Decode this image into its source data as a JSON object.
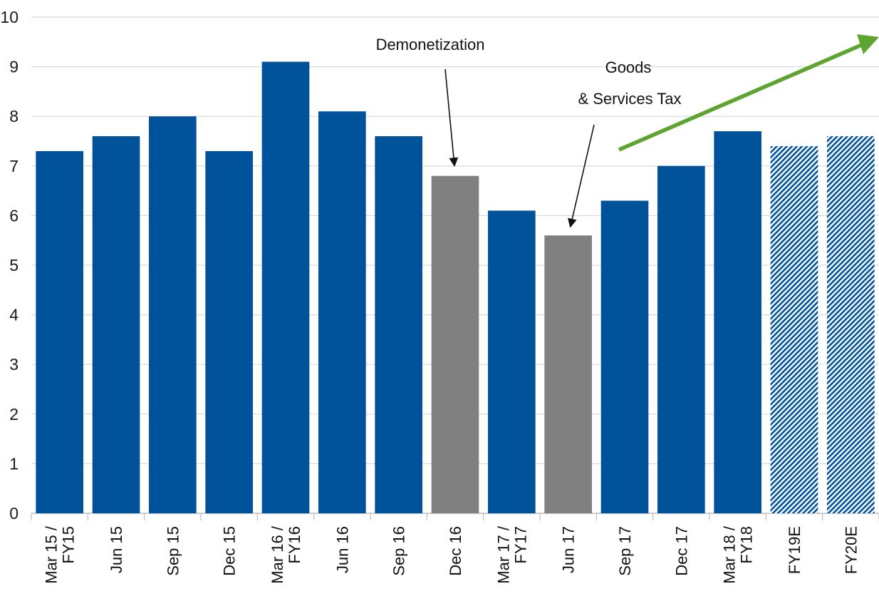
{
  "chart_data": {
    "type": "bar",
    "title": "",
    "xlabel": "",
    "ylabel": "",
    "ylim": [
      0,
      10
    ],
    "yticks": [
      0,
      1,
      2,
      3,
      4,
      5,
      6,
      7,
      8,
      9,
      10
    ],
    "grid": true,
    "categories": [
      [
        "Mar 15 /",
        "FY15"
      ],
      [
        "Jun 15"
      ],
      [
        "Sep 15"
      ],
      [
        "Dec 15"
      ],
      [
        "Mar 16 /",
        "FY16"
      ],
      [
        "Jun 16"
      ],
      [
        "Sep 16"
      ],
      [
        "Dec 16"
      ],
      [
        "Mar 17 /",
        "FY17"
      ],
      [
        "Jun 17"
      ],
      [
        "Sep 17"
      ],
      [
        "Dec 17"
      ],
      [
        "Mar 18 /",
        "FY18"
      ],
      [
        "FY19E"
      ],
      [
        "FY20E"
      ]
    ],
    "values": [
      7.3,
      7.6,
      8.0,
      7.3,
      9.1,
      8.1,
      7.6,
      6.8,
      6.1,
      5.6,
      6.3,
      7.0,
      7.7,
      7.4,
      7.6
    ],
    "bar_styles": [
      "actual",
      "actual",
      "actual",
      "actual",
      "actual",
      "actual",
      "actual",
      "event",
      "actual",
      "event",
      "actual",
      "actual",
      "actual",
      "estimate",
      "estimate"
    ],
    "colors": {
      "actual": "#00529B",
      "event": "#808080",
      "estimate": "#00529B",
      "trend_arrow": "#5EA430",
      "grid": "#D9D9D9"
    },
    "annotations": [
      {
        "lines": [
          "Demonetization"
        ],
        "target_index": 7
      },
      {
        "lines": [
          "Goods",
          "& Services Tax"
        ],
        "target_index": 9
      }
    ],
    "trend_arrow": {
      "direction": "up-right"
    }
  }
}
